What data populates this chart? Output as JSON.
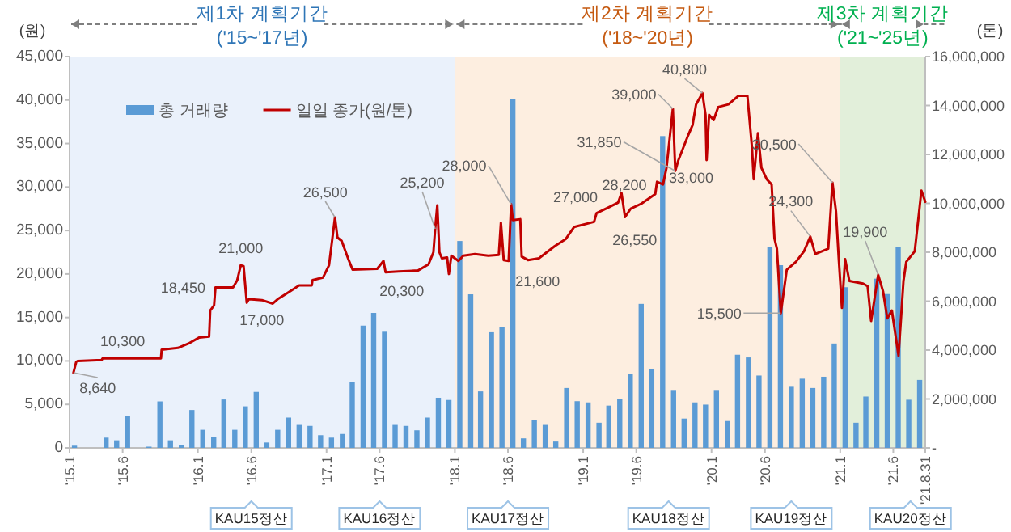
{
  "chart_data": {
    "type": "bar",
    "ylabel": "(원)",
    "y2label": "(톤)",
    "xlim": [
      "2015-01-01",
      "2021-08-31"
    ],
    "xticks": [
      {
        "value": "2015-01-01",
        "label": "'15.1"
      },
      {
        "value": "2015-06-01",
        "label": "'15.6"
      },
      {
        "value": "2016-01-01",
        "label": "'16.1"
      },
      {
        "value": "2016-06-01",
        "label": "'16.6"
      },
      {
        "value": "2017-01-01",
        "label": "'17.1"
      },
      {
        "value": "2017-06-01",
        "label": "'17.6"
      },
      {
        "value": "2018-01-01",
        "label": "'18.1"
      },
      {
        "value": "2018-06-01",
        "label": "'18.6"
      },
      {
        "value": "2019-01-01",
        "label": "'19.1"
      },
      {
        "value": "2019-06-01",
        "label": "'19.6"
      },
      {
        "value": "2020-01-01",
        "label": "'20.1"
      },
      {
        "value": "2020-06-01",
        "label": "'20.6"
      },
      {
        "value": "2021-01-01",
        "label": "'21.1"
      },
      {
        "value": "2021-06-01",
        "label": "'21.6"
      },
      {
        "value": "2021-08-31",
        "label": "'21.8.31"
      }
    ],
    "ylim": [
      0,
      45000
    ],
    "yticks": [
      0,
      {
        "value": 5000,
        "label": "5,000"
      },
      {
        "value": 10000,
        "label": "10,000"
      },
      {
        "value": 15000,
        "label": "15,000"
      },
      {
        "value": 20000,
        "label": "20,000"
      },
      {
        "value": 25000,
        "label": "25,000"
      },
      {
        "value": 30000,
        "label": "30,000"
      },
      {
        "value": 35000,
        "label": "35,000"
      },
      {
        "value": 40000,
        "label": "40,000"
      },
      {
        "value": 45000,
        "label": "45,000"
      }
    ],
    "y2lim": [
      0,
      16000000
    ],
    "y2ticks": [
      {
        "value": 0,
        "label": "-"
      },
      {
        "value": 2000000,
        "label": "2,000,000"
      },
      {
        "value": 4000000,
        "label": "4,000,000"
      },
      {
        "value": 6000000,
        "label": "6,000,000"
      },
      {
        "value": 8000000,
        "label": "8,000,000"
      },
      {
        "value": 10000000,
        "label": "10,000,000"
      },
      {
        "value": 12000000,
        "label": "12,000,000"
      },
      {
        "value": 14000000,
        "label": "14,000,000"
      },
      {
        "value": 16000000,
        "label": "16,000,000"
      }
    ],
    "legend": "top left",
    "bands": [
      {
        "axis": "x",
        "from": "2015-01-01",
        "to": "2018-01-01",
        "label": "제1차 계획기간\n('15~'17년)",
        "color": "#eaf1fb"
      },
      {
        "axis": "x",
        "from": "2018-01-01",
        "to": "2021-01-01",
        "label": "제2차 계획기간\n('18~'20년)",
        "color": "#fdeee0"
      },
      {
        "axis": "x",
        "from": "2021-01-01",
        "to": "2021-08-31",
        "label": "제3차 계획기간\n('21~'25년)",
        "color": "#e2efda"
      }
    ],
    "series": [
      {
        "name": "총 거래량",
        "axis": "y2",
        "color": "#5b9bd5",
        "x": [
          "2015-01-15",
          "2015-04-15",
          "2015-05-15",
          "2015-06-15",
          "2015-08-15",
          "2015-09-15",
          "2015-10-15",
          "2015-11-15",
          "2015-12-15",
          "2016-01-15",
          "2016-02-15",
          "2016-03-15",
          "2016-04-15",
          "2016-05-15",
          "2016-06-15",
          "2016-07-15",
          "2016-08-15",
          "2016-09-15",
          "2016-10-15",
          "2016-11-15",
          "2016-12-15",
          "2017-01-15",
          "2017-02-15",
          "2017-03-15",
          "2017-04-15",
          "2017-05-15",
          "2017-06-15",
          "2017-07-15",
          "2017-08-15",
          "2017-09-15",
          "2017-10-15",
          "2017-11-15",
          "2017-12-15",
          "2018-01-15",
          "2018-02-15",
          "2018-03-15",
          "2018-04-15",
          "2018-05-15",
          "2018-06-15",
          "2018-07-15",
          "2018-08-15",
          "2018-09-15",
          "2018-10-15",
          "2018-11-15",
          "2018-12-15",
          "2019-01-15",
          "2019-02-15",
          "2019-03-15",
          "2019-04-15",
          "2019-05-15",
          "2019-06-15",
          "2019-07-15",
          "2019-08-15",
          "2019-09-15",
          "2019-10-15",
          "2019-11-15",
          "2019-12-15",
          "2020-01-15",
          "2020-02-15",
          "2020-03-15",
          "2020-04-15",
          "2020-05-15",
          "2020-06-15",
          "2020-07-15",
          "2020-08-15",
          "2020-09-15",
          "2020-10-15",
          "2020-11-15",
          "2020-12-15",
          "2021-01-15",
          "2021-02-15",
          "2021-03-15",
          "2021-04-15",
          "2021-05-15",
          "2021-06-15",
          "2021-07-15",
          "2021-08-15"
        ],
        "values": [
          90000,
          420000,
          310000,
          1310000,
          50000,
          1900000,
          310000,
          130000,
          1550000,
          740000,
          460000,
          1980000,
          740000,
          1700000,
          2290000,
          220000,
          740000,
          1240000,
          940000,
          900000,
          520000,
          420000,
          570000,
          2710000,
          5000000,
          5520000,
          4750000,
          940000,
          900000,
          720000,
          1240000,
          2050000,
          1960000,
          8460000,
          6280000,
          2310000,
          4730000,
          4930000,
          14250000,
          390000,
          1140000,
          940000,
          260000,
          2450000,
          1910000,
          1860000,
          1030000,
          1730000,
          1990000,
          3040000,
          5890000,
          3240000,
          12750000,
          2370000,
          1200000,
          1860000,
          1770000,
          2370000,
          1100000,
          3810000,
          3700000,
          2960000,
          8210000,
          7470000,
          2500000,
          2830000,
          2450000,
          2910000,
          4270000,
          6570000,
          1030000,
          2100000,
          6920000,
          6290000,
          8210000,
          1970000,
          2780000
        ]
      },
      {
        "name": "일일 종가(원/톤)",
        "type": "line",
        "color": "#c00000",
        "x": [
          "2015-01-12",
          "2015-01-20",
          "2015-01-25",
          "2015-04-02",
          "2015-04-05",
          "2015-09-18",
          "2015-09-20",
          "2015-11-05",
          "2015-12-05",
          "2016-01-05",
          "2016-02-02",
          "2016-02-05",
          "2016-02-16",
          "2016-02-20",
          "2016-04-10",
          "2016-04-22",
          "2016-05-02",
          "2016-05-10",
          "2016-05-19",
          "2016-05-25",
          "2016-07-01",
          "2016-08-01",
          "2016-08-15",
          "2016-09-15",
          "2016-10-15",
          "2016-11-20",
          "2016-11-22",
          "2016-12-22",
          "2017-01-08",
          "2017-01-25",
          "2017-02-01",
          "2017-02-13",
          "2017-03-05",
          "2017-03-16",
          "2017-05-25",
          "2017-06-12",
          "2017-06-18",
          "2017-07-25",
          "2017-09-18",
          "2017-10-18",
          "2017-11-01",
          "2017-11-06",
          "2017-11-12",
          "2017-11-18",
          "2017-11-25",
          "2017-12-10",
          "2017-12-15",
          "2017-12-22",
          "2018-01-11",
          "2018-01-25",
          "2018-02-27",
          "2018-04-06",
          "2018-05-06",
          "2018-05-12",
          "2018-05-20",
          "2018-06-03",
          "2018-06-10",
          "2018-06-15",
          "2018-07-06",
          "2018-07-10",
          "2018-07-28",
          "2018-08-28",
          "2018-10-12",
          "2018-11-12",
          "2018-12-06",
          "2019-02-01",
          "2019-02-08",
          "2019-03-16",
          "2019-04-10",
          "2019-04-20",
          "2019-04-30",
          "2019-05-16",
          "2019-06-16",
          "2019-07-25",
          "2019-07-30",
          "2019-08-16",
          "2019-08-26",
          "2019-09-13",
          "2019-09-20",
          "2019-09-28",
          "2019-10-25",
          "2019-11-08",
          "2019-11-18",
          "2019-12-06",
          "2019-12-15",
          "2019-12-18",
          "2019-12-25",
          "2020-01-07",
          "2020-01-20",
          "2020-02-18",
          "2020-03-18",
          "2020-04-12",
          "2020-04-25",
          "2020-04-30",
          "2020-05-12",
          "2020-05-22",
          "2020-06-06",
          "2020-06-20",
          "2020-06-28",
          "2020-07-05",
          "2020-07-16",
          "2020-08-02",
          "2020-08-28",
          "2020-09-20",
          "2020-10-08",
          "2020-10-22",
          "2020-11-28",
          "2020-12-10",
          "2020-12-20",
          "2020-12-28",
          "2021-01-06",
          "2021-01-15",
          "2021-01-27",
          "2021-03-07",
          "2021-03-20",
          "2021-03-30",
          "2021-04-19",
          "2021-05-03",
          "2021-05-15",
          "2021-05-28",
          "2021-06-16",
          "2021-06-30",
          "2021-07-08",
          "2021-08-01",
          "2021-08-12",
          "2021-08-20",
          "2021-08-31"
        ],
        "values": [
          8640,
          9900,
          10000,
          10100,
          10300,
          10300,
          11300,
          11500,
          12000,
          12700,
          12800,
          15800,
          16400,
          18450,
          18450,
          19300,
          21000,
          20900,
          16700,
          17100,
          17000,
          16600,
          17100,
          17900,
          18700,
          18700,
          19300,
          19600,
          21000,
          26500,
          24200,
          23800,
          21600,
          20500,
          20600,
          21500,
          20200,
          20300,
          20400,
          21100,
          22500,
          25200,
          27900,
          22500,
          21800,
          21900,
          20000,
          22100,
          21500,
          22100,
          22300,
          22100,
          22200,
          25900,
          21600,
          21500,
          28000,
          26200,
          26300,
          22000,
          21600,
          21800,
          23200,
          24000,
          25400,
          26000,
          27000,
          27700,
          28200,
          29300,
          26550,
          27500,
          28100,
          29200,
          30600,
          30300,
          32200,
          39000,
          31850,
          33000,
          35800,
          37100,
          39500,
          40800,
          38300,
          33100,
          38300,
          37700,
          39200,
          39500,
          40500,
          40500,
          34600,
          30900,
          36200,
          32200,
          30900,
          30300,
          24100,
          22900,
          15500,
          20500,
          21400,
          22600,
          24300,
          22300,
          22900,
          30500,
          27200,
          21700,
          16100,
          21700,
          19200,
          18900,
          18600,
          14600,
          19900,
          18000,
          14900,
          15800,
          10600,
          19200,
          21400,
          22600,
          26600,
          29600,
          28300
        ]
      }
    ],
    "annotations": [
      {
        "text": "8,640",
        "x": "2015-01-12",
        "y": 8640
      },
      {
        "text": "10,300",
        "x": "2015-06-01",
        "y": 10300
      },
      {
        "text": "18,450",
        "x": "2016-02-20",
        "y": 18450
      },
      {
        "text": "21,000",
        "x": "2016-05-02",
        "y": 21000
      },
      {
        "text": "17,000",
        "x": "2016-07-01",
        "y": 17000
      },
      {
        "text": "26,500",
        "x": "2017-01-25",
        "y": 26500
      },
      {
        "text": "20,300",
        "x": "2017-07-25",
        "y": 20300
      },
      {
        "text": "25,200",
        "x": "2017-11-06",
        "y": 25200
      },
      {
        "text": "28,000",
        "x": "2018-06-10",
        "y": 28000
      },
      {
        "text": "21,600",
        "x": "2018-07-28",
        "y": 21600
      },
      {
        "text": "27,000",
        "x": "2019-02-08",
        "y": 27000
      },
      {
        "text": "28,200",
        "x": "2019-04-10",
        "y": 28200
      },
      {
        "text": "26,550",
        "x": "2019-04-30",
        "y": 26550
      },
      {
        "text": "31,850",
        "x": "2019-09-20",
        "y": 31850
      },
      {
        "text": "33,000",
        "x": "2019-09-28",
        "y": 33000
      },
      {
        "text": "39,000",
        "x": "2019-09-13",
        "y": 39000
      },
      {
        "text": "40,800",
        "x": "2019-12-06",
        "y": 40800
      },
      {
        "text": "15,500",
        "x": "2020-07-16",
        "y": 15500
      },
      {
        "text": "24,300",
        "x": "2020-10-08",
        "y": 24300
      },
      {
        "text": "30,500",
        "x": "2020-12-10",
        "y": 30500
      },
      {
        "text": "19,900",
        "x": "2021-04-19",
        "y": 19900
      },
      "KAU15정산",
      "KAU16정산",
      "KAU17정산",
      "KAU18정산",
      "KAU19정산",
      "KAU20정산"
    ]
  }
}
